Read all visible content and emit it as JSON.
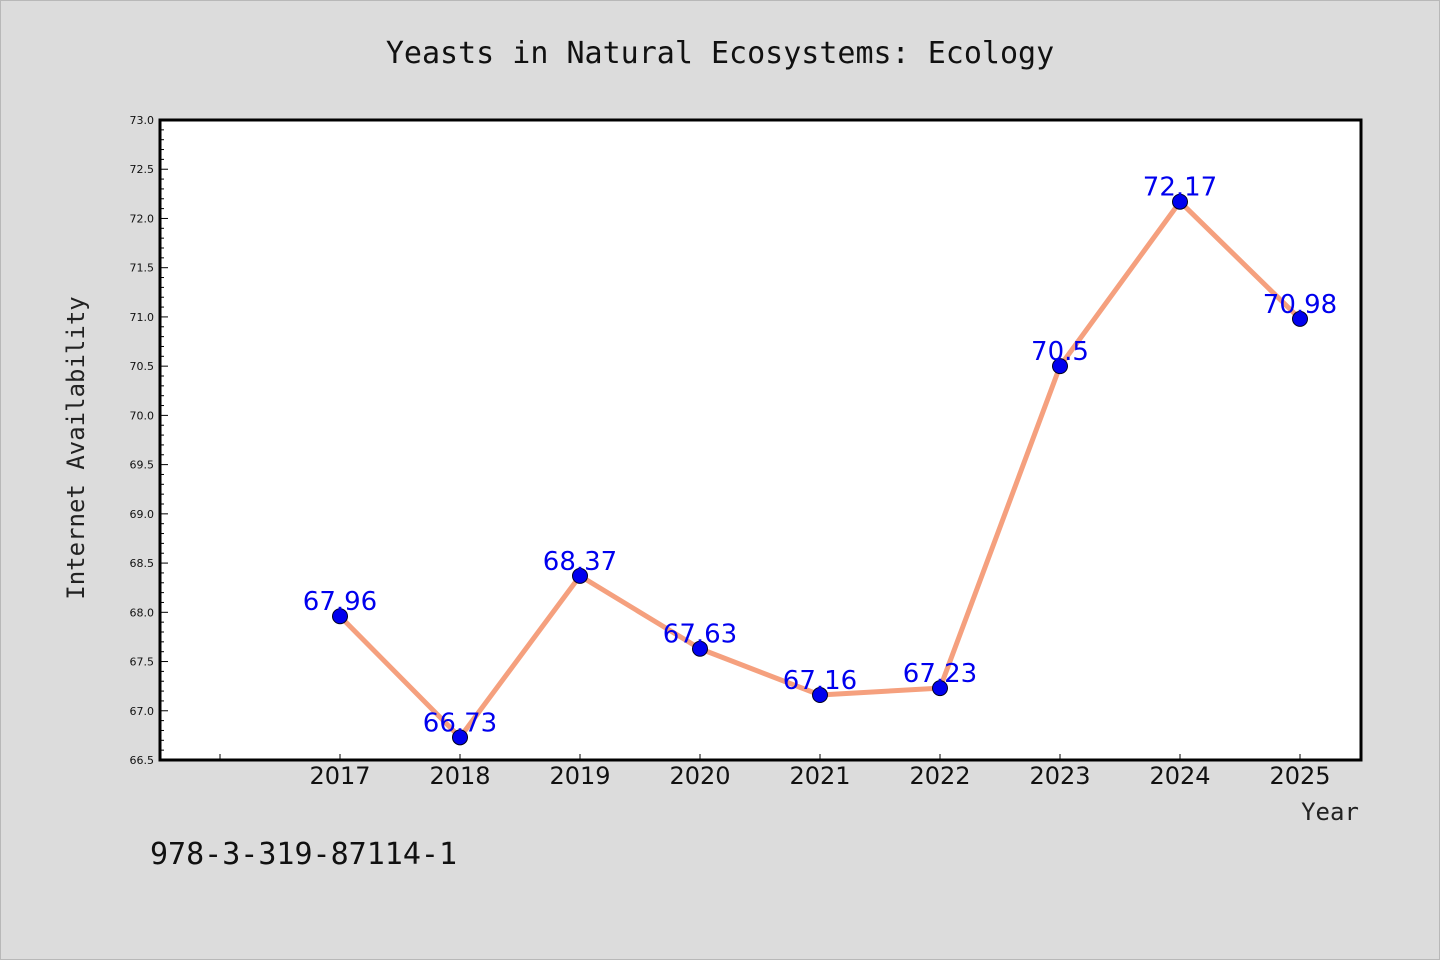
{
  "chart_data": {
    "type": "line",
    "title": "Yeasts in Natural Ecosystems: Ecology",
    "xlabel": "Year",
    "ylabel": "Internet Availability",
    "categories": [
      "2017",
      "2018",
      "2019",
      "2020",
      "2021",
      "2022",
      "2023",
      "2024",
      "2025"
    ],
    "series": [
      {
        "values": [
          67.96,
          66.73,
          68.37,
          67.63,
          67.16,
          67.23,
          70.5,
          72.17,
          70.98
        ],
        "labels": [
          "67.96",
          "66.73",
          "68.37",
          "67.63",
          "67.16",
          "67.23",
          "70.5",
          "72.17",
          "70.98"
        ]
      }
    ],
    "ylim": [
      66.5,
      73.0
    ],
    "yticks": [
      "66.5",
      "67.0",
      "67.5",
      "68.0",
      "68.5",
      "69.0",
      "69.5",
      "70.0",
      "70.5",
      "71.0",
      "71.5",
      "72.0",
      "72.5",
      "73.0"
    ],
    "grid": false,
    "legend": "none",
    "colors": {
      "line": "#f5a07e",
      "marker": "#0000ee",
      "label": "#0000ee",
      "background": "#dcdcdc",
      "plot_background": "#ffffff"
    }
  },
  "footer": {
    "isbn": "978-3-319-87114-1"
  }
}
